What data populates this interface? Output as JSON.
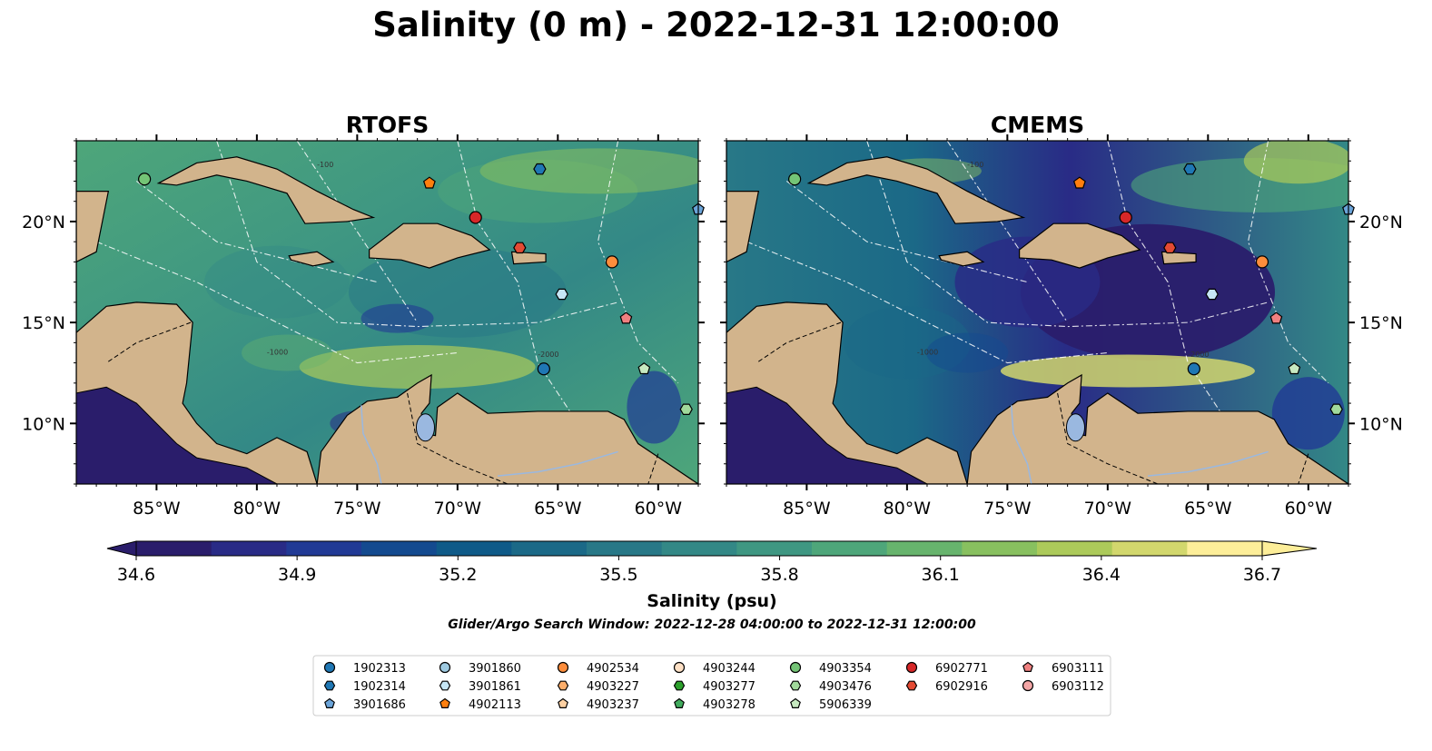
{
  "title": "Salinity (0 m) - 2022-12-31 12:00:00",
  "panels": [
    {
      "title": "RTOFS",
      "variant": "rtofs"
    },
    {
      "title": "CMEMS",
      "variant": "cmems"
    }
  ],
  "map": {
    "lon_range": [
      -89,
      -58
    ],
    "lat_range": [
      7,
      24
    ],
    "lon_ticks": [
      -85,
      -80,
      -75,
      -70,
      -65,
      -60
    ],
    "lon_tick_labels": [
      "85°W",
      "80°W",
      "75°W",
      "70°W",
      "65°W",
      "60°W"
    ],
    "lat_ticks": [
      10,
      15,
      20
    ],
    "lat_tick_labels": [
      "10°N",
      "15°N",
      "20°N"
    ],
    "land_color": "#d2b48c",
    "deep_ocean_color": "#2a1d6b",
    "lake_color": "#9ab8e0",
    "contour_labels": [
      "-100",
      "-1000",
      "-2000"
    ]
  },
  "colorbar": {
    "colormap": "haline",
    "min": 34.6,
    "max": 36.7,
    "ticks": [
      "34.6",
      "34.9",
      "35.2",
      "35.5",
      "35.8",
      "36.1",
      "36.4",
      "36.7"
    ],
    "label": "Salinity (psu)",
    "extend": "both",
    "colors": [
      "#2a1d6b",
      "#292b86",
      "#213a95",
      "#144a8f",
      "#0f5a88",
      "#1b6987",
      "#287887",
      "#338886",
      "#3f9782",
      "#4ea67a",
      "#67b46d",
      "#88c05f",
      "#acca5a",
      "#d2d76d",
      "#fdee99"
    ]
  },
  "search_window": "Glider/Argo Search Window: 2022-12-28 04:00:00 to 2022-12-31 12:00:00",
  "legend": {
    "columns": [
      [
        {
          "id": "1902313",
          "color": "#1f77b4",
          "shape": "circle"
        },
        {
          "id": "1902314",
          "color": "#1f77b4",
          "shape": "hexagon"
        },
        {
          "id": "3901686",
          "color": "#6ba4d9",
          "shape": "pentagon"
        }
      ],
      [
        {
          "id": "3901860",
          "color": "#9ecae1",
          "shape": "circle"
        },
        {
          "id": "3901861",
          "color": "#c6e6f5",
          "shape": "hexagon"
        },
        {
          "id": "4902113",
          "color": "#ff7f0e",
          "shape": "pentagon"
        }
      ],
      [
        {
          "id": "4902534",
          "color": "#fd8d3c",
          "shape": "circle"
        },
        {
          "id": "4903227",
          "color": "#fdae6b",
          "shape": "hexagon"
        },
        {
          "id": "4903237",
          "color": "#fdd0a2",
          "shape": "pentagon"
        }
      ],
      [
        {
          "id": "4903244",
          "color": "#fde0c5",
          "shape": "circle"
        },
        {
          "id": "4903277",
          "color": "#2ca02c",
          "shape": "hexagon"
        },
        {
          "id": "4903278",
          "color": "#41ab5d",
          "shape": "pentagon"
        }
      ],
      [
        {
          "id": "4903354",
          "color": "#74c476",
          "shape": "circle"
        },
        {
          "id": "4903476",
          "color": "#a1d99b",
          "shape": "hexagon"
        },
        {
          "id": "5906339",
          "color": "#c7e9c0",
          "shape": "pentagon"
        }
      ],
      [
        {
          "id": "6902771",
          "color": "#d62728",
          "shape": "circle"
        },
        {
          "id": "6902916",
          "color": "#e34a33",
          "shape": "hexagon"
        }
      ],
      [
        {
          "id": "6903111",
          "color": "#f08080",
          "shape": "pentagon"
        },
        {
          "id": "6903112",
          "color": "#f4a6a6",
          "shape": "circle"
        }
      ]
    ]
  },
  "floats_on_map": [
    {
      "id": "4903354",
      "lon": -85.6,
      "lat": 22.1,
      "color": "#74c476",
      "shape": "circle"
    },
    {
      "id": "4902113",
      "lon": -71.4,
      "lat": 21.9,
      "color": "#ff7f0e",
      "shape": "pentagon"
    },
    {
      "id": "1902314",
      "lon": -65.9,
      "lat": 22.6,
      "color": "#1f77b4",
      "shape": "hexagon"
    },
    {
      "id": "3901686",
      "lon": -58.0,
      "lat": 20.6,
      "color": "#6ba4d9",
      "shape": "pentagon"
    },
    {
      "id": "6902771",
      "lon": -69.1,
      "lat": 20.2,
      "color": "#d62728",
      "shape": "circle"
    },
    {
      "id": "6902916",
      "lon": -66.9,
      "lat": 18.7,
      "color": "#e34a33",
      "shape": "hexagon"
    },
    {
      "id": "4902534",
      "lon": -62.3,
      "lat": 18.0,
      "color": "#fd8d3c",
      "shape": "circle"
    },
    {
      "id": "3901861",
      "lon": -64.8,
      "lat": 16.4,
      "color": "#c6e6f5",
      "shape": "hexagon"
    },
    {
      "id": "6903111",
      "lon": -61.6,
      "lat": 15.2,
      "color": "#f08080",
      "shape": "pentagon"
    },
    {
      "id": "1902313",
      "lon": -65.7,
      "lat": 12.7,
      "color": "#1f77b4",
      "shape": "circle"
    },
    {
      "id": "5906339",
      "lon": -60.7,
      "lat": 12.7,
      "color": "#c7e9c0",
      "shape": "pentagon"
    },
    {
      "id": "4903476",
      "lon": -58.6,
      "lat": 10.7,
      "color": "#a1d99b",
      "shape": "hexagon"
    }
  ]
}
